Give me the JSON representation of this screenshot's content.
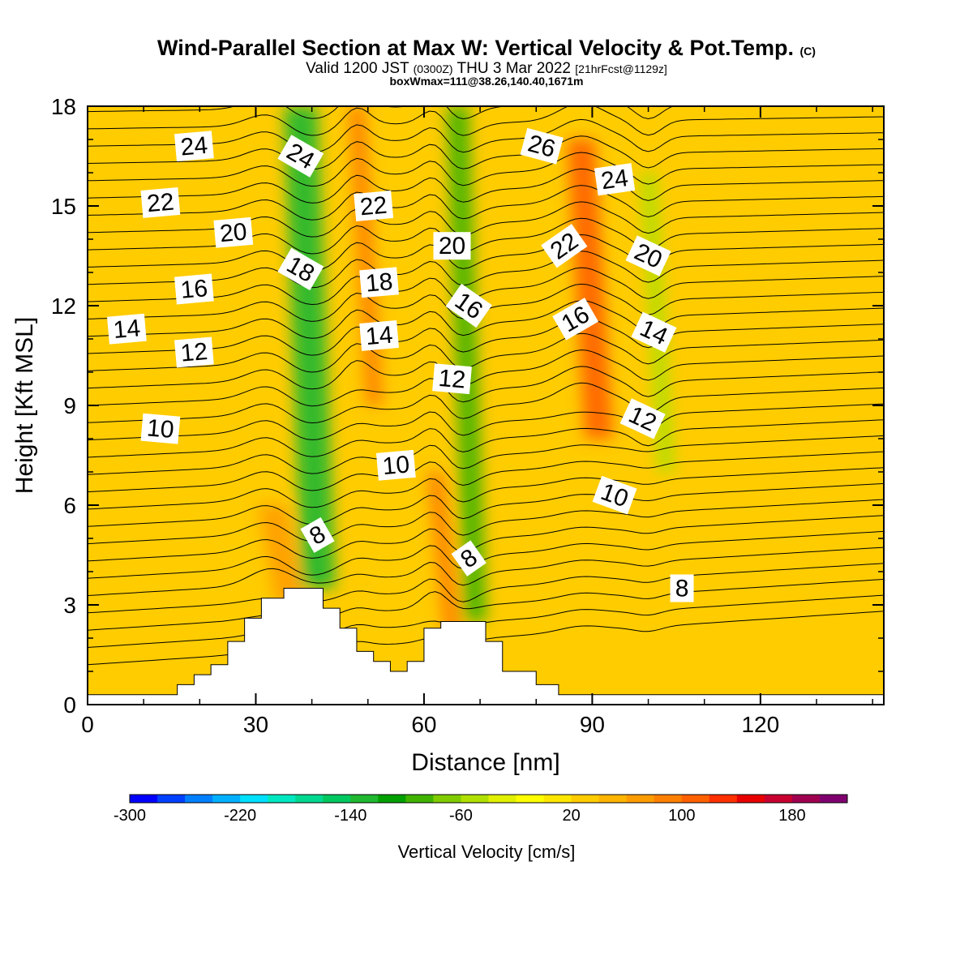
{
  "header": {
    "title_main": "Wind-Parallel Section at Max W: Vertical Velocity & Pot.Temp.",
    "title_mark": "(C)",
    "valid_prefix": "Valid 1200 JST",
    "valid_utc": "(0300Z)",
    "valid_date": "THU 3 Mar 2022",
    "valid_fcst": "[21hrFcst@1129z]",
    "boxinfo": "boxWmax=111@38.26,140.40,1671m"
  },
  "chart_data": {
    "type": "heatmap",
    "xlabel": "Distance [nm]",
    "ylabel": "Height [Kft MSL]",
    "xlim": [
      0,
      142
    ],
    "ylim": [
      0,
      18
    ],
    "x_ticks": [
      0,
      30,
      60,
      90,
      120
    ],
    "y_ticks": [
      0,
      3,
      6,
      9,
      12,
      15,
      18
    ],
    "colorbar": {
      "label": "Vertical Velocity [cm/s]",
      "tick_labels": [
        "-300",
        "-220",
        "-140",
        "-60",
        "20",
        "100",
        "180"
      ],
      "tick_values": [
        -300,
        -220,
        -140,
        -60,
        20,
        100,
        180
      ],
      "range": [
        -300,
        220
      ],
      "colors": [
        "#0000ff",
        "#0040ff",
        "#0080ff",
        "#00b0ff",
        "#00e0ff",
        "#00e8c0",
        "#00d890",
        "#00c860",
        "#20b830",
        "#00a000",
        "#40b400",
        "#80cc00",
        "#b0e000",
        "#e0f000",
        "#ffff00",
        "#ffe600",
        "#ffcc00",
        "#ffb400",
        "#ff9c00",
        "#ff8000",
        "#ff6000",
        "#ff3000",
        "#e80000",
        "#c80030",
        "#a00050",
        "#800070"
      ]
    },
    "background_velocity": 20,
    "velocity_bands": [
      {
        "x": 38,
        "width": 6,
        "value": -130,
        "ytop": 18,
        "ybottom": 3.5
      },
      {
        "x": 66,
        "width": 4,
        "value": -95,
        "ytop": 18,
        "ybottom": 2.5
      },
      {
        "x": 48,
        "width": 3,
        "value": 90,
        "ytop": 18,
        "ybottom": 9
      },
      {
        "x": 62,
        "width": 3,
        "value": 95,
        "ytop": 7,
        "ybottom": 2
      },
      {
        "x": 88,
        "width": 5,
        "value": 105,
        "ytop": 17,
        "ybottom": 8
      },
      {
        "x": 33,
        "width": 5,
        "value": 60,
        "ytop": 6,
        "ybottom": 3
      },
      {
        "x": 100,
        "width": 3,
        "value": -55,
        "ytop": 16,
        "ybottom": 7
      }
    ],
    "terrain_profile": {
      "x": [
        0,
        16,
        16,
        19,
        19,
        22,
        22,
        25,
        25,
        28,
        28,
        31,
        31,
        35,
        35,
        42,
        42,
        45,
        45,
        48,
        48,
        51,
        51,
        54,
        54,
        57,
        57,
        60,
        60,
        63,
        63,
        66,
        66,
        71,
        71,
        74,
        74,
        80,
        80,
        84,
        84,
        142
      ],
      "y": [
        0.3,
        0.3,
        0.6,
        0.6,
        0.9,
        0.9,
        1.2,
        1.2,
        1.9,
        1.9,
        2.6,
        2.6,
        3.2,
        3.2,
        3.5,
        3.5,
        2.9,
        2.9,
        2.3,
        2.3,
        1.6,
        1.6,
        1.3,
        1.3,
        1.0,
        1.0,
        1.3,
        1.3,
        2.3,
        2.3,
        2.5,
        2.5,
        2.5,
        2.5,
        1.9,
        1.9,
        1.0,
        1.0,
        0.6,
        0.6,
        0.3,
        0.3
      ]
    },
    "contour_labels": [
      {
        "text": "24",
        "x": 19,
        "y": 16.8,
        "rot": -5
      },
      {
        "text": "24",
        "x": 38,
        "y": 16.5,
        "rot": 30
      },
      {
        "text": "26",
        "x": 81,
        "y": 16.8,
        "rot": 15
      },
      {
        "text": "24",
        "x": 94,
        "y": 15.8,
        "rot": -8
      },
      {
        "text": "22",
        "x": 13,
        "y": 15.1,
        "rot": -5
      },
      {
        "text": "22",
        "x": 51,
        "y": 15.0,
        "rot": -5
      },
      {
        "text": "20",
        "x": 26,
        "y": 14.2,
        "rot": -5
      },
      {
        "text": "20",
        "x": 65,
        "y": 13.8,
        "rot": 0
      },
      {
        "text": "22",
        "x": 85,
        "y": 13.8,
        "rot": -35
      },
      {
        "text": "20",
        "x": 100,
        "y": 13.5,
        "rot": 25
      },
      {
        "text": "18",
        "x": 38,
        "y": 13.1,
        "rot": 30
      },
      {
        "text": "18",
        "x": 52,
        "y": 12.7,
        "rot": -5
      },
      {
        "text": "16",
        "x": 19,
        "y": 12.5,
        "rot": -5
      },
      {
        "text": "16",
        "x": 68,
        "y": 12.0,
        "rot": 35
      },
      {
        "text": "16",
        "x": 87,
        "y": 11.6,
        "rot": -30
      },
      {
        "text": "14",
        "x": 7,
        "y": 11.3,
        "rot": -5
      },
      {
        "text": "14",
        "x": 52,
        "y": 11.1,
        "rot": -5
      },
      {
        "text": "14",
        "x": 101,
        "y": 11.2,
        "rot": 25
      },
      {
        "text": "12",
        "x": 19,
        "y": 10.6,
        "rot": -5
      },
      {
        "text": "12",
        "x": 65,
        "y": 9.8,
        "rot": 5
      },
      {
        "text": "12",
        "x": 99,
        "y": 8.6,
        "rot": 25
      },
      {
        "text": "10",
        "x": 13,
        "y": 8.3,
        "rot": 5
      },
      {
        "text": "10",
        "x": 55,
        "y": 7.2,
        "rot": -5
      },
      {
        "text": "10",
        "x": 94,
        "y": 6.3,
        "rot": 20
      },
      {
        "text": "8",
        "x": 41,
        "y": 5.1,
        "rot": -30
      },
      {
        "text": "8",
        "x": 68,
        "y": 4.4,
        "rot": -35
      },
      {
        "text": "8",
        "x": 106,
        "y": 3.5,
        "rot": 0
      }
    ]
  }
}
